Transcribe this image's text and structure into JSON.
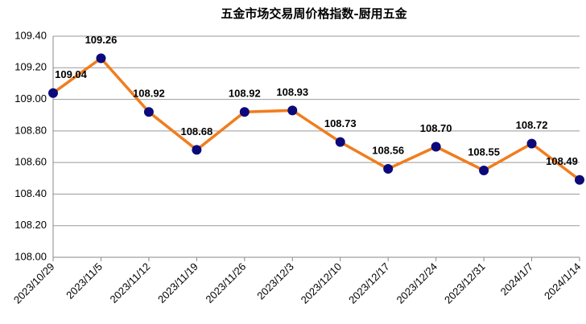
{
  "chart_data": {
    "type": "line",
    "title": "五金市场交易周价格指数-厨用五金",
    "categories": [
      "2023/10/29",
      "2023/11/5",
      "2023/11/12",
      "2023/11/19",
      "2023/11/26",
      "2023/12/3",
      "2023/12/10",
      "2023/12/17",
      "2023/12/24",
      "2023/12/31",
      "2024/1/7",
      "2024/1/14"
    ],
    "series": [
      {
        "color": "#f07d1e",
        "marker_color": "#0c0a7a",
        "values": [
          109.04,
          109.26,
          108.92,
          108.68,
          108.92,
          108.93,
          108.73,
          108.56,
          108.7,
          108.55,
          108.72,
          108.49
        ],
        "value_labels": [
          "109.04",
          "109.26",
          "108.92",
          "108.68",
          "108.92",
          "108.93",
          "108.73",
          "108.56",
          "108.70",
          "108.55",
          "108.72",
          "108.49"
        ]
      }
    ],
    "ylim": [
      108,
      109.4
    ],
    "yticks": [
      {
        "value": 108,
        "label": "108.00"
      },
      {
        "value": 108.2,
        "label": "108.20"
      },
      {
        "value": 108.4,
        "label": "108.40"
      },
      {
        "value": 108.6,
        "label": "108.60"
      },
      {
        "value": 108.8,
        "label": "108.80"
      },
      {
        "value": 109,
        "label": "109.00"
      },
      {
        "value": 109.2,
        "label": "109.20"
      },
      {
        "value": 109.4,
        "label": "109.40"
      }
    ],
    "grid": true
  }
}
